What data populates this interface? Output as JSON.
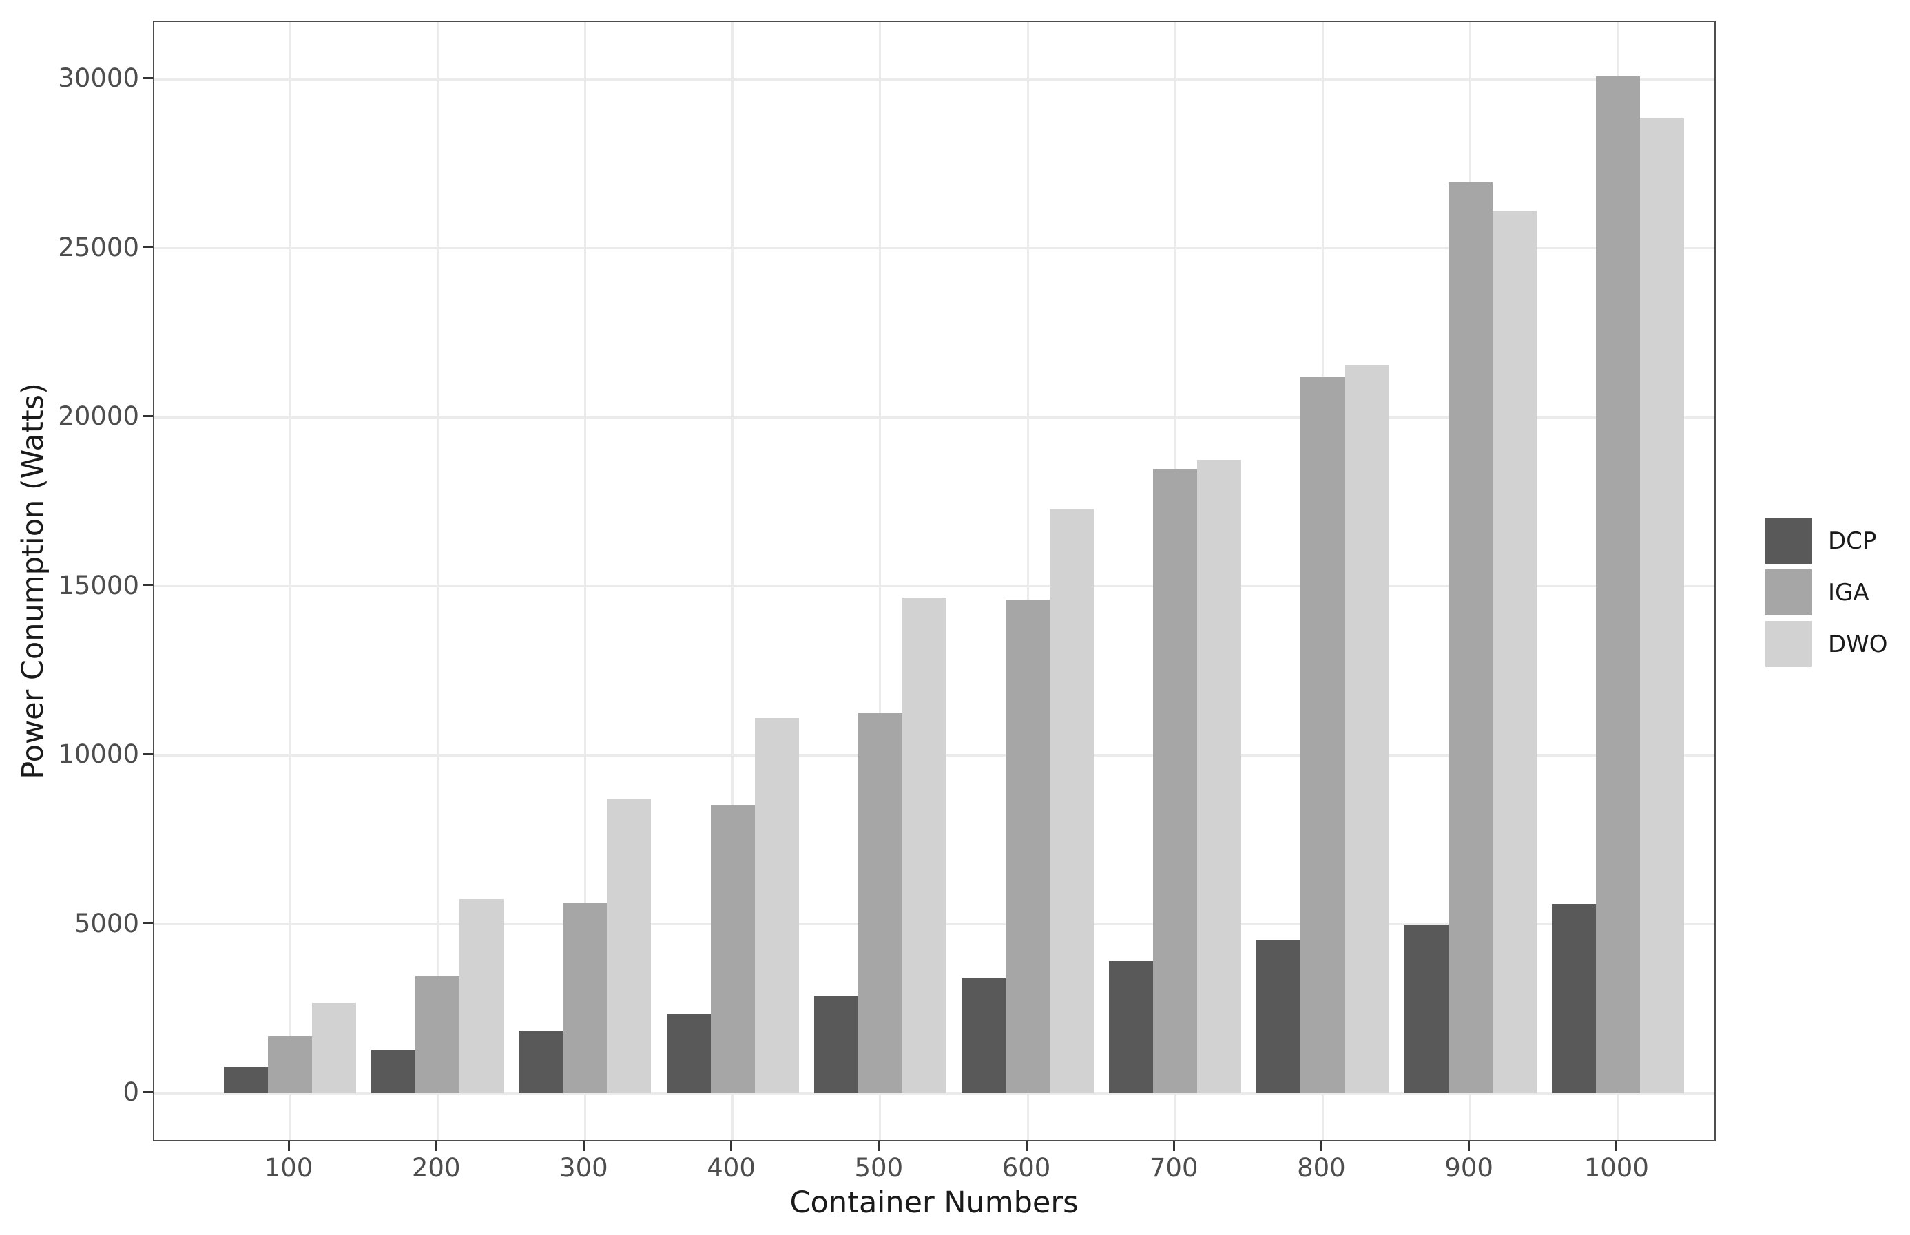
{
  "chart_data": {
    "type": "bar",
    "title": "",
    "xlabel": "Container Numbers",
    "ylabel": "Power Conumption (Watts)",
    "categories": [
      "100",
      "200",
      "300",
      "400",
      "500",
      "600",
      "700",
      "800",
      "900",
      "1000"
    ],
    "series": [
      {
        "name": "DCP",
        "color": "#595959",
        "values": [
          780,
          1290,
          1830,
          2340,
          2870,
          3400,
          3910,
          4520,
          5000,
          5600
        ]
      },
      {
        "name": "IGA",
        "color": "#a6a6a6",
        "values": [
          1690,
          3460,
          5620,
          8510,
          11250,
          14600,
          18470,
          21200,
          26950,
          30090
        ]
      },
      {
        "name": "DWO",
        "color": "#d2d2d2",
        "values": [
          2660,
          5740,
          8710,
          11100,
          14660,
          17300,
          18730,
          21550,
          26120,
          28840
        ]
      }
    ],
    "yticks": [
      0,
      5000,
      10000,
      15000,
      20000,
      25000,
      30000
    ],
    "ylim": [
      -1470,
      31690
    ],
    "grid": "major",
    "legend_position": "right",
    "bar_group_gap": "none-within-group"
  },
  "style": {
    "background": "#ffffff",
    "panel_border": "#4d4d4d",
    "gridline": "#ebebeb",
    "tick_label_color": "#4d4d4d",
    "axis_title_color": "#1a1a1a",
    "tick_mark_color": "#333333"
  }
}
